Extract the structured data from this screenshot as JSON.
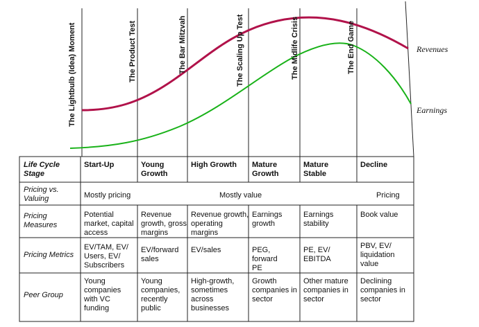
{
  "stage_labels": [
    "The Lightbulb (Idea) Moment",
    "The Product Test",
    "The Bar Mitzvah",
    "The Scaling Up Test",
    "The Midlife Crisis",
    "The End Game"
  ],
  "curves": {
    "revenues": {
      "label": "Revenues",
      "color": "#b1124a"
    },
    "earnings": {
      "label": "Earnings",
      "color": "#19b219"
    }
  },
  "table": {
    "row_headers": [
      "Life Cycle Stage",
      "Pricing vs. Valuing",
      "Pricing Measures",
      "Pricing Metrics",
      "Peer Group"
    ],
    "stages": [
      "Start-Up",
      "Young Growth",
      "High Growth",
      "Mature Growth",
      "Mature Stable",
      "Decline"
    ],
    "pricing_vs_valuing": [
      "Mostly pricing",
      "Mostly value",
      "Pricing"
    ],
    "pricing_measures": [
      "Potential market, capital access",
      "Revenue growth, gross margins",
      "Revenue growth, operating margins",
      "Earnings growth",
      "Earnings stability",
      "Book value"
    ],
    "pricing_metrics": [
      "EV/TAM, EV/ Users, EV/ Subscribers",
      "EV/forward sales",
      "EV/sales",
      "PEG, forward PE",
      "PE, EV/ EBITDA",
      "PBV, EV/ liquidation value"
    ],
    "peer_group": [
      "Young companies with VC funding",
      "Young companies, recently public",
      "High-growth, sometimes across businesses",
      "Growth companies in sector",
      "Other mature companies in sector",
      "Declining companies in sector"
    ]
  }
}
